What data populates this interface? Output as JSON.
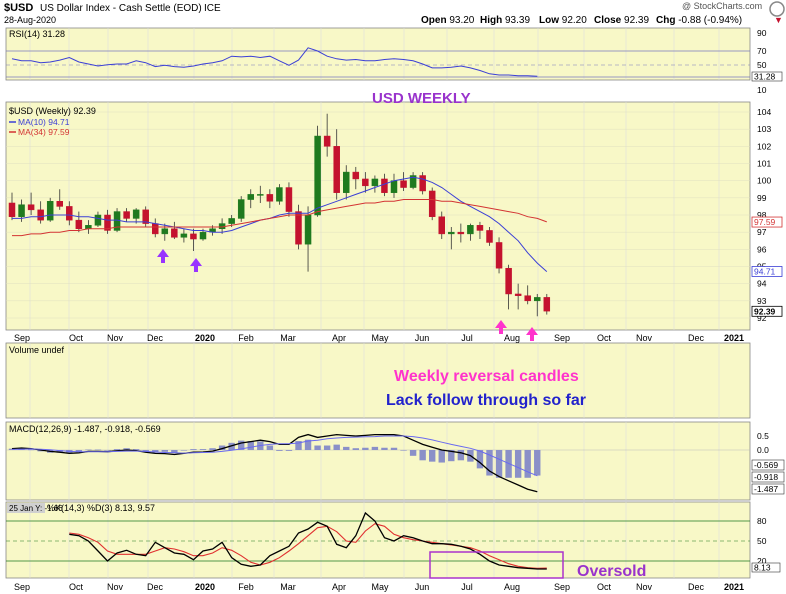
{
  "header": {
    "symbol": "$USD",
    "name": "US Dollar Index - Cash Settle (EOD)",
    "exchange": "ICE",
    "date": "28-Aug-2020",
    "watermark": "@ StockCharts.com",
    "ohlc": [
      {
        "k": "Open",
        "v": "93.20"
      },
      {
        "k": "High",
        "v": "93.39"
      },
      {
        "k": "Low",
        "v": "92.20"
      },
      {
        "k": "Close",
        "v": "92.39"
      },
      {
        "k": "Chg",
        "v": "-0.88 (-0.94%)"
      }
    ],
    "chg_arrow": "▼"
  },
  "colors": {
    "panel_bg": "#f8f8c7",
    "up": "#1f7a1f",
    "down": "#c4122e",
    "ma10": "#3b3fd6",
    "ma34": "#d33333",
    "rsi": "#3b3fd6",
    "macd": "#000000",
    "signal": "#6a6af0",
    "hist": "#8a90c8",
    "stoch_k": "#000000",
    "stoch_d": "#e03030",
    "purple_arrow": "#9933ff",
    "magenta_arrow": "#ff33cc",
    "title": "#9933cc",
    "note1": "#ff33cc",
    "note2": "#2222cc",
    "box": "#aa33cc"
  },
  "panels": {
    "rsi": {
      "label": "RSI(14) 31.28",
      "ticks": [
        "90",
        "70",
        "50",
        "30",
        "10"
      ],
      "value_tag": "31.28"
    },
    "price": {
      "label": "$USD (Weekly) 92.39",
      "legend": [
        {
          "text": "MA(10) 94.71",
          "color": "#3b3fd6"
        },
        {
          "text": "MA(34) 97.59",
          "color": "#d33333"
        }
      ],
      "ticks": [
        "104",
        "103",
        "102",
        "101",
        "100",
        "99",
        "98",
        "97",
        "96",
        "95",
        "94",
        "93",
        "92"
      ],
      "tags": [
        "97.59",
        "94.71",
        "92.39"
      ]
    },
    "volume": {
      "label": "Volume undef"
    },
    "macd": {
      "label": "MACD(12,26,9) -1.487, -0.918, -0.569",
      "ticks": [
        "0.5",
        "0.0",
        "-0.5",
        "-1.0"
      ],
      "tags": [
        "-0.569",
        "-0.918",
        "-1.487"
      ]
    },
    "stoch": {
      "label": "%K(14,3) %D(3) 8.13, 9.57",
      "tooltip": "25 Jan Y: -1.66",
      "ticks": [
        "80",
        "50",
        "20"
      ],
      "value_tag": "8.13"
    }
  },
  "x_axis": [
    "Sep",
    "Oct",
    "Nov",
    "Dec",
    "2020",
    "Feb",
    "Mar",
    "Apr",
    "May",
    "Jun",
    "Jul",
    "Aug",
    "Sep",
    "Oct",
    "Nov",
    "Dec",
    "2021"
  ],
  "annotations": {
    "title": "USD WEEKLY",
    "note1": "Weekly reversal candles",
    "note2": "Lack follow through so far",
    "oversold": "Oversold"
  },
  "chart_data": {
    "type": "candlestick",
    "title": "$USD (Weekly) 92.39",
    "ylim": [
      92,
      104.5
    ],
    "candles": [
      [
        98.7,
        99.3,
        97.7,
        97.9
      ],
      [
        97.9,
        98.9,
        97.6,
        98.6
      ],
      [
        98.6,
        99.3,
        98.0,
        98.3
      ],
      [
        98.3,
        98.8,
        97.5,
        97.7
      ],
      [
        97.7,
        99.0,
        97.6,
        98.8
      ],
      [
        98.8,
        99.5,
        98.3,
        98.5
      ],
      [
        98.5,
        98.8,
        97.4,
        97.7
      ],
      [
        97.7,
        98.2,
        97.0,
        97.2
      ],
      [
        97.2,
        97.7,
        96.9,
        97.4
      ],
      [
        97.4,
        98.2,
        97.3,
        98.0
      ],
      [
        98.0,
        98.3,
        96.9,
        97.1
      ],
      [
        97.1,
        98.4,
        97.0,
        98.2
      ],
      [
        98.2,
        98.4,
        97.6,
        97.8
      ],
      [
        97.8,
        98.4,
        97.5,
        98.3
      ],
      [
        98.3,
        98.5,
        97.3,
        97.5
      ],
      [
        97.5,
        97.8,
        96.7,
        96.9
      ],
      [
        96.9,
        97.5,
        96.5,
        97.2
      ],
      [
        97.2,
        97.6,
        96.6,
        96.7
      ],
      [
        96.7,
        97.2,
        96.4,
        96.9
      ],
      [
        96.9,
        97.2,
        95.9,
        96.6
      ],
      [
        96.6,
        97.2,
        96.5,
        97.0
      ],
      [
        97.0,
        97.4,
        96.8,
        97.2
      ],
      [
        97.2,
        97.8,
        96.9,
        97.5
      ],
      [
        97.5,
        98.0,
        97.3,
        97.8
      ],
      [
        97.8,
        99.1,
        97.6,
        98.9
      ],
      [
        98.9,
        99.5,
        98.4,
        99.2
      ],
      [
        99.2,
        99.7,
        98.7,
        99.2
      ],
      [
        99.2,
        99.5,
        98.4,
        98.8
      ],
      [
        98.8,
        99.8,
        98.6,
        99.6
      ],
      [
        99.6,
        99.9,
        97.9,
        98.2
      ],
      [
        98.2,
        98.6,
        96.0,
        96.3
      ],
      [
        96.3,
        98.5,
        94.7,
        98.0
      ],
      [
        98.0,
        103.2,
        97.9,
        102.6
      ],
      [
        102.6,
        103.9,
        101.4,
        102.0
      ],
      [
        102.0,
        103.0,
        98.9,
        99.3
      ],
      [
        99.3,
        100.9,
        98.9,
        100.5
      ],
      [
        100.5,
        100.8,
        99.5,
        100.1
      ],
      [
        100.1,
        100.5,
        99.3,
        99.7
      ],
      [
        99.7,
        100.3,
        99.3,
        100.1
      ],
      [
        100.1,
        100.4,
        99.1,
        99.3
      ],
      [
        99.3,
        100.4,
        99.0,
        100.0
      ],
      [
        100.0,
        100.5,
        99.4,
        99.6
      ],
      [
        99.6,
        100.5,
        99.5,
        100.3
      ],
      [
        100.3,
        100.5,
        99.2,
        99.4
      ],
      [
        99.4,
        99.6,
        97.7,
        97.9
      ],
      [
        97.9,
        98.2,
        96.6,
        96.9
      ],
      [
        96.9,
        97.3,
        96.0,
        97.0
      ],
      [
        97.0,
        97.5,
        96.4,
        96.9
      ],
      [
        96.9,
        97.5,
        96.5,
        97.4
      ],
      [
        97.4,
        97.6,
        96.6,
        97.1
      ],
      [
        97.1,
        97.3,
        96.2,
        96.4
      ],
      [
        96.4,
        96.7,
        94.6,
        94.9
      ],
      [
        94.9,
        95.1,
        92.5,
        93.4
      ],
      [
        93.4,
        94.0,
        92.5,
        93.3
      ],
      [
        93.3,
        93.9,
        92.8,
        93.0
      ],
      [
        93.0,
        93.4,
        92.1,
        93.2
      ],
      [
        93.2,
        93.4,
        92.2,
        92.4
      ]
    ],
    "ma10": [
      97.8,
      97.8,
      97.9,
      97.9,
      98.0,
      98.0,
      98.0,
      97.9,
      97.9,
      97.8,
      97.7,
      97.7,
      97.6,
      97.6,
      97.6,
      97.5,
      97.4,
      97.3,
      97.2,
      97.1,
      97.1,
      97.0,
      97.0,
      97.1,
      97.3,
      97.5,
      97.7,
      97.8,
      98.0,
      98.1,
      98.1,
      98.1,
      98.4,
      98.6,
      98.8,
      99.0,
      99.2,
      99.4,
      99.6,
      99.8,
      100.0,
      100.1,
      100.2,
      100.1,
      99.9,
      99.6,
      99.2,
      98.8,
      98.5,
      98.2,
      97.9,
      97.5,
      97.0,
      96.5,
      95.8,
      95.2,
      94.7
    ],
    "ma34": [
      96.8,
      96.8,
      96.9,
      96.9,
      97.0,
      97.0,
      97.1,
      97.1,
      97.2,
      97.2,
      97.2,
      97.3,
      97.3,
      97.3,
      97.3,
      97.3,
      97.3,
      97.3,
      97.3,
      97.3,
      97.3,
      97.3,
      97.3,
      97.4,
      97.5,
      97.6,
      97.7,
      97.8,
      97.9,
      98.0,
      98.0,
      98.0,
      98.2,
      98.3,
      98.4,
      98.5,
      98.6,
      98.7,
      98.7,
      98.8,
      98.8,
      98.9,
      98.9,
      98.9,
      98.9,
      98.8,
      98.8,
      98.7,
      98.6,
      98.5,
      98.4,
      98.3,
      98.2,
      98.1,
      97.9,
      97.8,
      97.6
    ],
    "rsi": [
      58,
      55,
      55,
      52,
      53,
      56,
      60,
      53,
      50,
      47,
      49,
      50,
      50,
      55,
      52,
      46,
      48,
      46,
      45,
      47,
      50,
      52,
      55,
      62,
      61,
      62,
      60,
      62,
      55,
      48,
      56,
      75,
      70,
      62,
      58,
      56,
      57,
      55,
      55,
      57,
      58,
      57,
      55,
      50,
      44,
      44,
      45,
      47,
      44,
      40,
      35,
      33,
      33,
      32,
      32,
      31
    ],
    "macd": [
      0.05,
      0.07,
      0.05,
      0.0,
      -0.05,
      -0.08,
      -0.12,
      -0.1,
      -0.05,
      -0.05,
      -0.06,
      -0.03,
      0.0,
      -0.02,
      -0.08,
      -0.12,
      -0.13,
      -0.16,
      -0.12,
      -0.08,
      -0.07,
      -0.04,
      0.05,
      0.15,
      0.25,
      0.3,
      0.35,
      0.3,
      0.2,
      0.2,
      0.45,
      0.55,
      0.45,
      0.5,
      0.55,
      0.52,
      0.5,
      0.52,
      0.55,
      0.55,
      0.55,
      0.5,
      0.35,
      0.2,
      0.1,
      0.0,
      -0.05,
      -0.1,
      -0.2,
      -0.45,
      -0.75,
      -0.95,
      -1.1,
      -1.25,
      -1.4,
      -1.49
    ],
    "signal": [
      0.02,
      0.03,
      0.04,
      0.03,
      0.01,
      -0.02,
      -0.05,
      -0.06,
      -0.06,
      -0.06,
      -0.06,
      -0.05,
      -0.04,
      -0.04,
      -0.05,
      -0.07,
      -0.09,
      -0.1,
      -0.11,
      -0.1,
      -0.09,
      -0.08,
      -0.05,
      -0.01,
      0.04,
      0.1,
      0.16,
      0.2,
      0.22,
      0.22,
      0.25,
      0.32,
      0.35,
      0.4,
      0.43,
      0.45,
      0.46,
      0.47,
      0.48,
      0.5,
      0.5,
      0.5,
      0.48,
      0.43,
      0.36,
      0.28,
      0.2,
      0.13,
      0.06,
      -0.04,
      -0.18,
      -0.33,
      -0.48,
      -0.63,
      -0.78,
      -0.92
    ],
    "stoch_k": [
      60,
      58,
      50,
      35,
      20,
      32,
      36,
      30,
      28,
      48,
      40,
      32,
      30,
      22,
      35,
      38,
      48,
      25,
      15,
      12,
      14,
      28,
      35,
      42,
      62,
      68,
      78,
      72,
      45,
      40,
      58,
      92,
      80,
      55,
      50,
      58,
      55,
      50,
      46,
      46,
      45,
      42,
      38,
      30,
      20,
      14,
      12,
      10,
      9,
      8,
      8
    ],
    "stoch_d": [
      62,
      60,
      55,
      48,
      35,
      30,
      30,
      30,
      30,
      35,
      40,
      38,
      34,
      28,
      28,
      32,
      40,
      36,
      28,
      18,
      14,
      18,
      25,
      35,
      46,
      58,
      70,
      72,
      64,
      50,
      48,
      65,
      76,
      72,
      60,
      55,
      52,
      50,
      48,
      46,
      44,
      42,
      40,
      35,
      28,
      22,
      16,
      12,
      10,
      9,
      9.57
    ]
  }
}
